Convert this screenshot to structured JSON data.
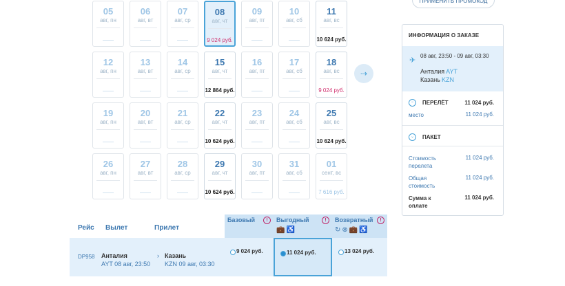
{
  "calendar": {
    "cells": [
      {
        "day": "05",
        "wd": "авг, пн",
        "price": "",
        "state": "empty"
      },
      {
        "day": "06",
        "wd": "авг, вт",
        "price": "",
        "state": "empty"
      },
      {
        "day": "07",
        "wd": "авг, ср",
        "price": "",
        "state": "empty"
      },
      {
        "day": "08",
        "wd": "авг, чт",
        "price": "9 024 руб.",
        "state": "selected"
      },
      {
        "day": "09",
        "wd": "авг, пт",
        "price": "",
        "state": "empty"
      },
      {
        "day": "10",
        "wd": "авг, сб",
        "price": "",
        "state": "empty"
      },
      {
        "day": "11",
        "wd": "авг, вс",
        "price": "10 624 руб.",
        "state": "avail"
      },
      {
        "day": "12",
        "wd": "авг, пн",
        "price": "",
        "state": "empty"
      },
      {
        "day": "13",
        "wd": "авг, вт",
        "price": "",
        "state": "empty"
      },
      {
        "day": "14",
        "wd": "авг, ср",
        "price": "",
        "state": "empty"
      },
      {
        "day": "15",
        "wd": "авг, чт",
        "price": "12 864 руб.",
        "state": "avail"
      },
      {
        "day": "16",
        "wd": "авг, пт",
        "price": "",
        "state": "empty"
      },
      {
        "day": "17",
        "wd": "авг, сб",
        "price": "",
        "state": "empty"
      },
      {
        "day": "18",
        "wd": "авг, вс",
        "price": "9 024 руб.",
        "state": "avail-cheap"
      },
      {
        "day": "19",
        "wd": "авг, пн",
        "price": "",
        "state": "empty"
      },
      {
        "day": "20",
        "wd": "авг, вт",
        "price": "",
        "state": "empty"
      },
      {
        "day": "21",
        "wd": "авг, ср",
        "price": "",
        "state": "empty"
      },
      {
        "day": "22",
        "wd": "авг, чт",
        "price": "10 624 руб.",
        "state": "avail"
      },
      {
        "day": "23",
        "wd": "авг, пт",
        "price": "",
        "state": "empty"
      },
      {
        "day": "24",
        "wd": "авг, сб",
        "price": "",
        "state": "empty"
      },
      {
        "day": "25",
        "wd": "авг, вс",
        "price": "10 624 руб.",
        "state": "avail"
      },
      {
        "day": "26",
        "wd": "авг, пн",
        "price": "",
        "state": "empty"
      },
      {
        "day": "27",
        "wd": "авг, вт",
        "price": "",
        "state": "empty"
      },
      {
        "day": "28",
        "wd": "авг, ср",
        "price": "",
        "state": "empty"
      },
      {
        "day": "29",
        "wd": "авг, чт",
        "price": "10 624 руб.",
        "state": "avail"
      },
      {
        "day": "30",
        "wd": "авг, пт",
        "price": "",
        "state": "empty"
      },
      {
        "day": "31",
        "wd": "авг, сб",
        "price": "",
        "state": "empty"
      },
      {
        "day": "01",
        "wd": "сент, вс",
        "price": "7 616 руб.",
        "state": "alt"
      }
    ],
    "next_icon": "arrow-right-icon"
  },
  "promo": {
    "label": "ПРИМЕНИТЬ ПРОМОКОД"
  },
  "order": {
    "title": "ИНФОРМАЦИЯ О ЗАКАЗЕ",
    "route": {
      "dates": "08 авг, 23:50 - 09 авг, 03:30",
      "from_city": "Анталия",
      "from_code": "AYT",
      "to_city": "Казань",
      "to_code": "KZN"
    },
    "flight": {
      "label": "ПЕРЕЛЁТ",
      "total": "11 024 руб.",
      "seat_label": "место",
      "seat_value": "11 024 руб."
    },
    "package": {
      "label": "ПАКЕТ"
    },
    "rows": [
      {
        "label": "Стоимость перелета",
        "value": "11 024 руб."
      },
      {
        "label": "Общая стоимость",
        "value": "11 024 руб."
      },
      {
        "label": "Сумма к оплате",
        "value": "11 024 руб."
      }
    ]
  },
  "table": {
    "headers": {
      "flight": "Рейс",
      "departure": "Вылет",
      "arrival": "Прилет"
    },
    "fares": [
      {
        "name": "Базовый",
        "price": "9 024 руб.",
        "selected": false
      },
      {
        "name": "Выгодный",
        "price": "11 024 руб.",
        "selected": true
      },
      {
        "name": "Возвратный",
        "price": "13 024 руб.",
        "selected": false
      }
    ],
    "row": {
      "flight_no": "DP958",
      "dep_city": "Анталия",
      "dep_detail": "AYT 08 авг, 23:50",
      "arr_city": "Казань",
      "arr_detail": "KZN 09 авг, 03:30"
    }
  },
  "colors": {
    "accent": "#4aa3d8",
    "cheap": "#d0306e",
    "selected_bg": "#e3f0fb"
  }
}
